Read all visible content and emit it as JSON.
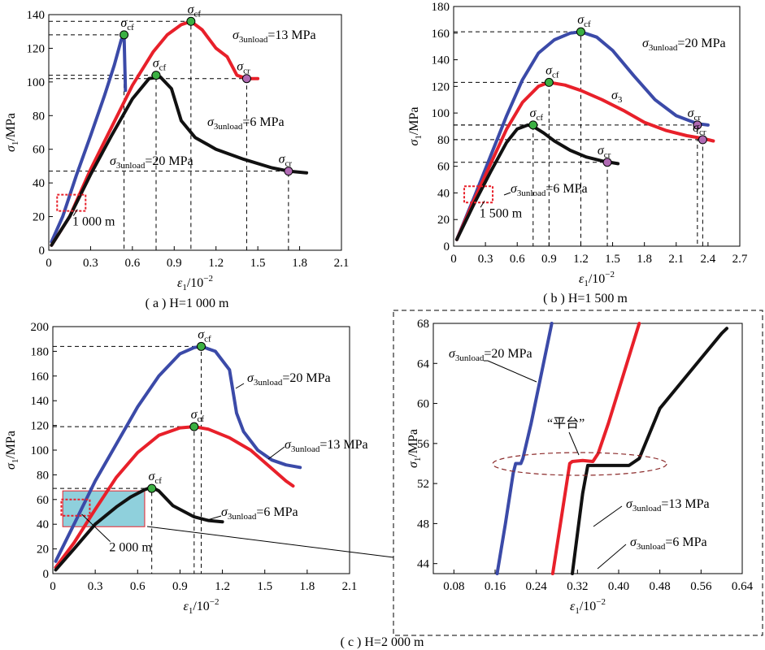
{
  "colors": {
    "blue": "#3b4aa8",
    "red": "#e8202a",
    "black": "#111111",
    "green": "#3cb043",
    "purple": "#b06ab3",
    "highlight": "#8fd0dc"
  },
  "chart_data": [
    {
      "id": "a",
      "type": "line",
      "caption": "( a )  H=1 000 m",
      "ylabel": "σ1/MPa",
      "xlabel": "ε1/10−2",
      "xlim": [
        0,
        2.1
      ],
      "ylim": [
        0,
        140
      ],
      "xticks": [
        "0",
        "0.3",
        "0.6",
        "0.9",
        "1.2",
        "1.5",
        "1.8",
        "2.1"
      ],
      "yticks": [
        "0",
        "20",
        "40",
        "60",
        "80",
        "100",
        "120",
        "140"
      ],
      "series": [
        {
          "label": "σ3unload=20 MPa",
          "color": "blue",
          "x": [
            0.02,
            0.1,
            0.2,
            0.3,
            0.4,
            0.47,
            0.52,
            0.54,
            0.55
          ],
          "y": [
            5,
            20,
            45,
            68,
            92,
            110,
            125,
            128,
            95
          ]
        },
        {
          "label": "σ3unload=13 MPa",
          "color": "red",
          "x": [
            0.02,
            0.15,
            0.3,
            0.45,
            0.6,
            0.75,
            0.85,
            0.95,
            1.02,
            1.1,
            1.2,
            1.28,
            1.35,
            1.42,
            1.5
          ],
          "y": [
            3,
            20,
            48,
            73,
            98,
            118,
            128,
            134,
            136,
            131,
            120,
            115,
            104,
            102,
            102
          ]
        },
        {
          "label": "σ3unload=6 MPa",
          "color": "black",
          "x": [
            0.02,
            0.15,
            0.3,
            0.45,
            0.6,
            0.72,
            0.8,
            0.88,
            0.95,
            1.05,
            1.2,
            1.4,
            1.6,
            1.72,
            1.85
          ],
          "y": [
            3,
            20,
            45,
            68,
            90,
            102,
            103,
            96,
            77,
            67,
            60,
            54,
            49,
            47,
            46
          ]
        }
      ],
      "markers": [
        {
          "label": "σcf",
          "x": 0.54,
          "y": 128,
          "color": "green"
        },
        {
          "label": "σcf",
          "x": 1.02,
          "y": 136,
          "color": "green"
        },
        {
          "label": "σcf",
          "x": 0.77,
          "y": 104,
          "color": "green"
        },
        {
          "label": "σcr",
          "x": 1.42,
          "y": 102,
          "color": "purple"
        },
        {
          "label": "σcr",
          "x": 1.72,
          "y": 47,
          "color": "purple"
        }
      ],
      "box_label": "1 000 m"
    },
    {
      "id": "b",
      "type": "line",
      "caption": "( b )  H=1 500 m",
      "ylabel": "σ1/MPa",
      "xlabel": "ε1/10−2",
      "xlim": [
        0,
        2.7
      ],
      "ylim": [
        0,
        180
      ],
      "xticks": [
        "0",
        "0.3",
        "0.6",
        "0.9",
        "1.2",
        "1.5",
        "1.8",
        "2.1",
        "2.4",
        "2.7"
      ],
      "yticks": [
        "0",
        "20",
        "40",
        "60",
        "80",
        "100",
        "120",
        "140",
        "160",
        "180"
      ],
      "series": [
        {
          "label": "σ3unload=20 MPa",
          "color": "blue",
          "x": [
            0.03,
            0.2,
            0.35,
            0.5,
            0.65,
            0.8,
            0.95,
            1.1,
            1.2,
            1.35,
            1.5,
            1.7,
            1.9,
            2.1,
            2.3,
            2.4
          ],
          "y": [
            5,
            38,
            68,
            98,
            125,
            145,
            155,
            160,
            161,
            157,
            147,
            128,
            110,
            98,
            92,
            91
          ]
        },
        {
          "label": "σ3",
          "color": "red",
          "x": [
            0.03,
            0.2,
            0.35,
            0.5,
            0.65,
            0.8,
            0.9,
            1.05,
            1.2,
            1.4,
            1.6,
            1.8,
            2.0,
            2.2,
            2.35,
            2.45
          ],
          "y": [
            5,
            36,
            62,
            88,
            108,
            120,
            123,
            121,
            117,
            110,
            102,
            93,
            87,
            83,
            81,
            79
          ]
        },
        {
          "label": "σ3unload=6 MPa",
          "color": "black",
          "x": [
            0.03,
            0.2,
            0.35,
            0.5,
            0.6,
            0.7,
            0.75,
            0.85,
            0.95,
            1.1,
            1.25,
            1.4,
            1.55
          ],
          "y": [
            5,
            33,
            56,
            78,
            88,
            91,
            90,
            85,
            79,
            72,
            67,
            64,
            62
          ]
        }
      ],
      "markers": [
        {
          "label": "σcf",
          "x": 1.2,
          "y": 161,
          "color": "green"
        },
        {
          "label": "σcf",
          "x": 0.9,
          "y": 123,
          "color": "green"
        },
        {
          "label": "σcf",
          "x": 0.75,
          "y": 91,
          "color": "green"
        },
        {
          "label": "σcr",
          "x": 2.3,
          "y": 91,
          "color": "purple"
        },
        {
          "label": "σcr",
          "x": 2.35,
          "y": 80,
          "color": "purple"
        },
        {
          "label": "σcr",
          "x": 1.45,
          "y": 63,
          "color": "purple"
        }
      ],
      "box_label": "1 500 m"
    },
    {
      "id": "c",
      "type": "line",
      "caption": "( c )  H=2 000 m",
      "ylabel": "σ1/MPa",
      "xlabel": "ε1/10−2",
      "xlim": [
        0,
        2.1
      ],
      "ylim": [
        0,
        200
      ],
      "xticks": [
        "0",
        "0.3",
        "0.6",
        "0.9",
        "1.2",
        "1.5",
        "1.8",
        "2.1"
      ],
      "yticks": [
        "0",
        "20",
        "40",
        "60",
        "80",
        "100",
        "120",
        "140",
        "160",
        "180",
        "200"
      ],
      "series": [
        {
          "label": "σ3unload=20 MPa",
          "color": "blue",
          "x": [
            0.02,
            0.15,
            0.3,
            0.45,
            0.6,
            0.75,
            0.9,
            1.0,
            1.05,
            1.15,
            1.25,
            1.3,
            1.35,
            1.45,
            1.55,
            1.65,
            1.75
          ],
          "y": [
            10,
            40,
            75,
            105,
            135,
            160,
            178,
            183,
            184,
            180,
            165,
            130,
            115,
            100,
            92,
            88,
            86
          ]
        },
        {
          "label": "σ3unload=13 MPa",
          "color": "red",
          "x": [
            0.02,
            0.15,
            0.3,
            0.45,
            0.6,
            0.75,
            0.9,
            1.0,
            1.1,
            1.25,
            1.4,
            1.55,
            1.65,
            1.7
          ],
          "y": [
            5,
            25,
            52,
            78,
            98,
            112,
            118,
            119,
            117,
            110,
            100,
            85,
            75,
            71
          ]
        },
        {
          "label": "σ3unload=6 MPa",
          "color": "black",
          "x": [
            0.02,
            0.15,
            0.3,
            0.45,
            0.55,
            0.65,
            0.7,
            0.75,
            0.85,
            1.0,
            1.1,
            1.2
          ],
          "y": [
            3,
            20,
            40,
            54,
            62,
            68,
            70,
            67,
            55,
            46,
            43,
            42
          ]
        }
      ],
      "markers": [
        {
          "label": "σcf",
          "x": 1.05,
          "y": 184,
          "color": "green"
        },
        {
          "label": "σcf",
          "x": 1.0,
          "y": 119,
          "color": "green"
        },
        {
          "label": "σcf",
          "x": 0.7,
          "y": 69,
          "color": "green"
        }
      ],
      "box_label": "2 000 m"
    },
    {
      "id": "d",
      "type": "line",
      "ylabel": "σ1/MPa",
      "xlabel": "ε1/10−2",
      "xlim": [
        0.04,
        0.64
      ],
      "ylim": [
        43,
        68
      ],
      "xticks": [
        "0.08",
        "0.16",
        "0.24",
        "0.32",
        "0.40",
        "0.48",
        "0.56",
        "0.64"
      ],
      "yticks": [
        "44",
        "48",
        "52",
        "56",
        "60",
        "64",
        "68"
      ],
      "series": [
        {
          "label": "σ3unload=20 MPa",
          "color": "blue",
          "x": [
            0.164,
            0.18,
            0.195,
            0.2,
            0.21,
            0.214,
            0.23,
            0.25,
            0.27
          ],
          "y": [
            43,
            48,
            53,
            54,
            54,
            54.5,
            58,
            63,
            68
          ]
        },
        {
          "label": "σ3unload=13 MPa",
          "color": "red",
          "x": [
            0.272,
            0.29,
            0.305,
            0.31,
            0.33,
            0.35,
            0.36,
            0.38,
            0.41,
            0.44
          ],
          "y": [
            43,
            49,
            54,
            54.2,
            54.3,
            54.2,
            55,
            58,
            63,
            68
          ]
        },
        {
          "label": "σ3unload=6 MPa",
          "color": "black",
          "x": [
            0.31,
            0.32,
            0.33,
            0.34,
            0.38,
            0.42,
            0.44,
            0.46,
            0.48,
            0.52,
            0.56,
            0.6,
            0.61
          ],
          "y": [
            43,
            47,
            51,
            53.8,
            53.8,
            53.8,
            54.5,
            57,
            59.5,
            62,
            64.5,
            67,
            67.5
          ]
        }
      ],
      "callout": "“平台”"
    }
  ]
}
